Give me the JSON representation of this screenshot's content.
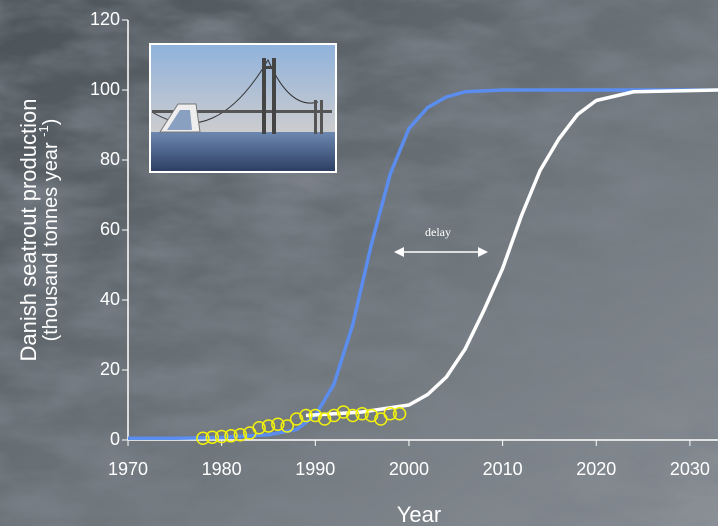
{
  "chart_data": {
    "type": "line",
    "x_label": "Year",
    "y_label": {
      "line1": "Danish seatrout production",
      "line2": "(thousand tonnes year",
      "superscript": "-1",
      "line2_end": ")"
    },
    "annotation": "delay",
    "xlim": [
      1970,
      2033
    ],
    "ylim": [
      0,
      120
    ],
    "xticks": [
      1970,
      1980,
      1990,
      2000,
      2010,
      2020,
      2030
    ],
    "yticks": [
      0,
      20,
      40,
      60,
      80,
      100,
      120
    ],
    "series": [
      {
        "mode": "line",
        "color": "#5b8def",
        "x": [
          1970,
          1975,
          1980,
          1985,
          1988,
          1990,
          1992,
          1994,
          1996,
          1998,
          2000,
          2002,
          2004,
          2006,
          2010,
          2020,
          2033
        ],
        "values": [
          0.5,
          0.5,
          0.7,
          1.5,
          3,
          7,
          16,
          33,
          56,
          76,
          89,
          95,
          98,
          99.5,
          100,
          100,
          100
        ]
      },
      {
        "mode": "line",
        "color": "#ffffff",
        "x": [
          1989,
          1995,
          2000,
          2002,
          2004,
          2006,
          2008,
          2010,
          2012,
          2014,
          2016,
          2018,
          2020,
          2024,
          2033
        ],
        "values": [
          7,
          8,
          10,
          13,
          18,
          26,
          37,
          49,
          64,
          77,
          86,
          93,
          97,
          99.5,
          100
        ]
      },
      {
        "mode": "markers",
        "color": "#f2f20a",
        "x": [
          1978,
          1979,
          1980,
          1981,
          1982,
          1983,
          1984,
          1985,
          1986,
          1987,
          1988,
          1989,
          1990,
          1991,
          1992,
          1993,
          1994,
          1995,
          1996,
          1997,
          1998,
          1999
        ],
        "values": [
          0.5,
          0.8,
          1,
          1.2,
          1.5,
          2,
          3.5,
          4,
          4.5,
          4,
          6,
          7,
          7,
          6,
          7,
          8,
          7,
          7.5,
          7,
          6,
          7.5,
          7.5
        ]
      }
    ]
  }
}
